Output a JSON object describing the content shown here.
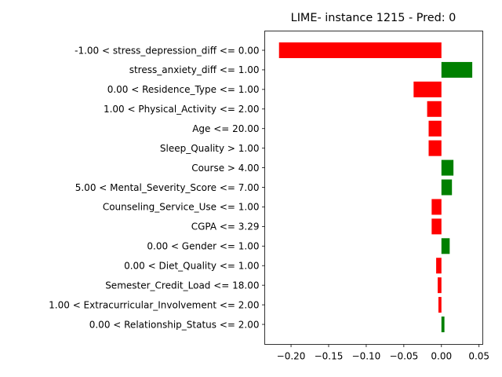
{
  "chart_data": {
    "type": "bar",
    "orientation": "horizontal",
    "title": "LIME- instance 1215 - Pred: 0",
    "xlabel": "",
    "ylabel": "",
    "xlim": [
      -0.235,
      0.055
    ],
    "xticks": [
      -0.2,
      -0.15,
      -0.1,
      -0.05,
      0.0,
      0.05
    ],
    "xtick_labels": [
      "−0.20",
      "−0.15",
      "−0.10",
      "−0.05",
      "0.00",
      "0.05"
    ],
    "grid": false,
    "positive_color": "#008000",
    "negative_color": "#ff0000",
    "categories": [
      "-1.00 < stress_depression_diff <= 0.00",
      "stress_anxiety_diff <= 1.00",
      "0.00 < Residence_Type <= 1.00",
      "1.00 < Physical_Activity <= 2.00",
      "Age <= 20.00",
      "Sleep_Quality > 1.00",
      "Course > 4.00",
      "5.00 < Mental_Severity_Score <= 7.00",
      "Counseling_Service_Use <= 1.00",
      "CGPA <= 3.29",
      "0.00 < Gender <= 1.00",
      "0.00 < Diet_Quality <= 1.00",
      "Semester_Credit_Load <= 18.00",
      "1.00 < Extracurricular_Involvement <= 2.00",
      "0.00 < Relationship_Status <= 2.00"
    ],
    "values": [
      -0.216,
      0.041,
      -0.037,
      -0.019,
      -0.017,
      -0.017,
      0.016,
      0.014,
      -0.013,
      -0.013,
      0.011,
      -0.007,
      -0.005,
      -0.004,
      0.004
    ]
  }
}
